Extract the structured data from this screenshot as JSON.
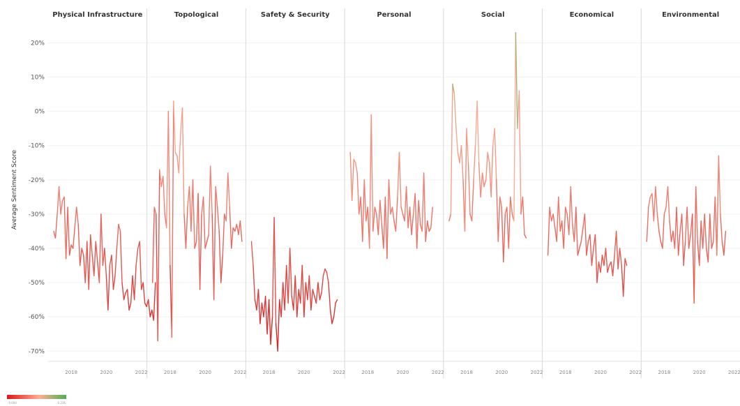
{
  "chart_data": {
    "type": "line",
    "ylabel": "Average Sentiment Score",
    "ylim": [
      -73,
      26
    ],
    "yticks": [
      20,
      10,
      0,
      -10,
      -20,
      -30,
      -40,
      -50,
      -60,
      -70
    ],
    "ytick_labels": [
      "20%",
      "10%",
      "0%",
      "-10%",
      "-20%",
      "-30%",
      "-40%",
      "-50%",
      "-60%",
      "-70%"
    ],
    "xlim": [
      2016.8,
      2022.2
    ],
    "xticks": [
      2018,
      2020,
      2022
    ],
    "xtick_labels": [
      "2018",
      "2020",
      "2022"
    ],
    "color_scale": {
      "low": "#d7191c",
      "mid": "#fdae97",
      "high": "#4caf50",
      "low_value": -70,
      "high_value": 24
    },
    "legend": {
      "min_label": "-0.694",
      "max_label": "0.236"
    },
    "panels": [
      {
        "name": "Physical Infrastructure",
        "x_start": 2017.0,
        "x_step": 0.1,
        "values": [
          -35,
          -37,
          -30,
          -22,
          -30,
          -26,
          -25,
          -43,
          -28,
          -42,
          -39,
          -40,
          -34,
          -28,
          -33,
          -45,
          -40,
          -42,
          -50,
          -38,
          -52,
          -36,
          -42,
          -48,
          -38,
          -44,
          -50,
          -30,
          -45,
          -40,
          -48,
          -58,
          -45,
          -42,
          -52,
          -48,
          -40,
          -33,
          -35,
          -50,
          -55,
          -53,
          -52,
          -58,
          -56,
          -48,
          -55,
          -45,
          -40,
          -38,
          -52,
          -50,
          -56,
          -57,
          -55,
          -60,
          -58,
          -61,
          -50
        ]
      },
      {
        "name": "Topological",
        "x_start": 2017.0,
        "x_step": 0.1,
        "values": [
          -50,
          -28,
          -30,
          -67,
          -17,
          -22,
          -19,
          -30,
          -34,
          0,
          -45,
          -66,
          3,
          -12,
          -13,
          -18,
          -6,
          1,
          -30,
          -40,
          -28,
          -22,
          -35,
          -20,
          -40,
          -38,
          -24,
          -52,
          -30,
          -25,
          -40,
          -38,
          -36,
          -16,
          -30,
          -55,
          -22,
          -28,
          -35,
          -50,
          -42,
          -30,
          -32,
          -18,
          -28,
          -40,
          -34,
          -35,
          -33,
          -36,
          -32,
          -38
        ]
      },
      {
        "name": "Safety & Security",
        "x_start": 2017.0,
        "x_step": 0.1,
        "values": [
          -38,
          -45,
          -55,
          -58,
          -52,
          -62,
          -56,
          -60,
          -54,
          -65,
          -55,
          -68,
          -60,
          -31,
          -62,
          -70,
          -55,
          -60,
          -50,
          -58,
          -45,
          -56,
          -40,
          -54,
          -58,
          -48,
          -60,
          -52,
          -56,
          -45,
          -60,
          -50,
          -55,
          -48,
          -58,
          -52,
          -54,
          -56,
          -50,
          -55,
          -53,
          -48,
          -46,
          -47,
          -50,
          -58,
          -62,
          -60,
          -56,
          -55
        ]
      },
      {
        "name": "Personal",
        "x_start": 2017.0,
        "x_step": 0.1,
        "values": [
          -12,
          -26,
          -14,
          -15,
          -18,
          -30,
          -25,
          -38,
          -20,
          -32,
          -28,
          -40,
          -1,
          -35,
          -28,
          -30,
          -36,
          -26,
          -33,
          -40,
          -25,
          -43,
          -20,
          -30,
          -28,
          -32,
          -35,
          -25,
          -12,
          -28,
          -30,
          -32,
          -22,
          -34,
          -28,
          -36,
          -30,
          -24,
          -40,
          -26,
          -33,
          -35,
          -18,
          -38,
          -32,
          -35,
          -34,
          -28
        ]
      },
      {
        "name": "Social",
        "x_start": 2017.0,
        "x_step": 0.1,
        "values": [
          -32,
          -30,
          8,
          5,
          -5,
          -12,
          -15,
          -10,
          -20,
          -35,
          -5,
          -15,
          -30,
          -32,
          -20,
          -10,
          3,
          -15,
          -25,
          -18,
          -22,
          -20,
          -12,
          -15,
          -25,
          -10,
          -5,
          -20,
          -38,
          -25,
          -28,
          -44,
          -30,
          -28,
          -40,
          -25,
          -30,
          -32,
          23,
          -5,
          6,
          -30,
          -25,
          -36,
          -37
        ]
      },
      {
        "name": "Economical",
        "x_start": 2017.0,
        "x_step": 0.1,
        "values": [
          -42,
          -28,
          -32,
          -30,
          -34,
          -38,
          -25,
          -35,
          -32,
          -40,
          -28,
          -30,
          -36,
          -22,
          -33,
          -38,
          -28,
          -42,
          -40,
          -38,
          -34,
          -30,
          -42,
          -38,
          -36,
          -45,
          -40,
          -36,
          -50,
          -44,
          -47,
          -42,
          -45,
          -40,
          -47,
          -45,
          -44,
          -48,
          -42,
          -35,
          -46,
          -40,
          -45,
          -54,
          -43,
          -45
        ]
      },
      {
        "name": "Environmental",
        "x_start": 2017.0,
        "x_step": 0.1,
        "values": [
          -38,
          -28,
          -25,
          -24,
          -32,
          -22,
          -30,
          -35,
          -38,
          -40,
          -30,
          -28,
          -22,
          -32,
          -38,
          -35,
          -40,
          -28,
          -42,
          -35,
          -30,
          -45,
          -38,
          -28,
          -40,
          -36,
          -30,
          -56,
          -22,
          -38,
          -45,
          -32,
          -40,
          -30,
          -40,
          -44,
          -30,
          -40,
          -38,
          -25,
          -42,
          -13,
          -30,
          -38,
          -42,
          -35
        ]
      }
    ]
  }
}
